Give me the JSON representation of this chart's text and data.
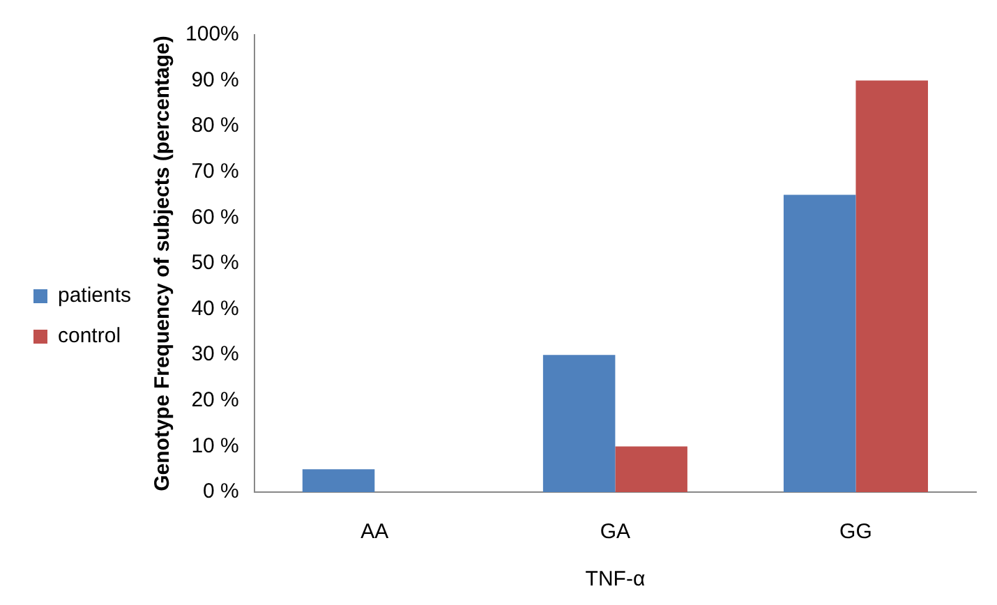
{
  "chart_data": {
    "type": "bar",
    "ylabel": "Genotype Frequency of subjects (percentage)",
    "xlabel": "TNF-α",
    "categories": [
      "AA",
      "GA",
      "GG"
    ],
    "series": [
      {
        "name": "patients",
        "color": "#4f81bd",
        "values": [
          5,
          30,
          65
        ]
      },
      {
        "name": "control",
        "color": "#c0504d",
        "values": [
          0,
          10,
          90
        ]
      }
    ],
    "ylim": [
      0,
      100
    ],
    "yticks": [
      {
        "value": 0,
        "label": "0 %"
      },
      {
        "value": 10,
        "label": "10 %"
      },
      {
        "value": 20,
        "label": "20 %"
      },
      {
        "value": 30,
        "label": "30 %"
      },
      {
        "value": 40,
        "label": "40 %"
      },
      {
        "value": 50,
        "label": "50 %"
      },
      {
        "value": 60,
        "label": "60 %"
      },
      {
        "value": 70,
        "label": "70 %"
      },
      {
        "value": 80,
        "label": "80 %"
      },
      {
        "value": 90,
        "label": "90 %"
      },
      {
        "value": 100,
        "label": "100%"
      }
    ],
    "grid": false,
    "legend": "left"
  }
}
